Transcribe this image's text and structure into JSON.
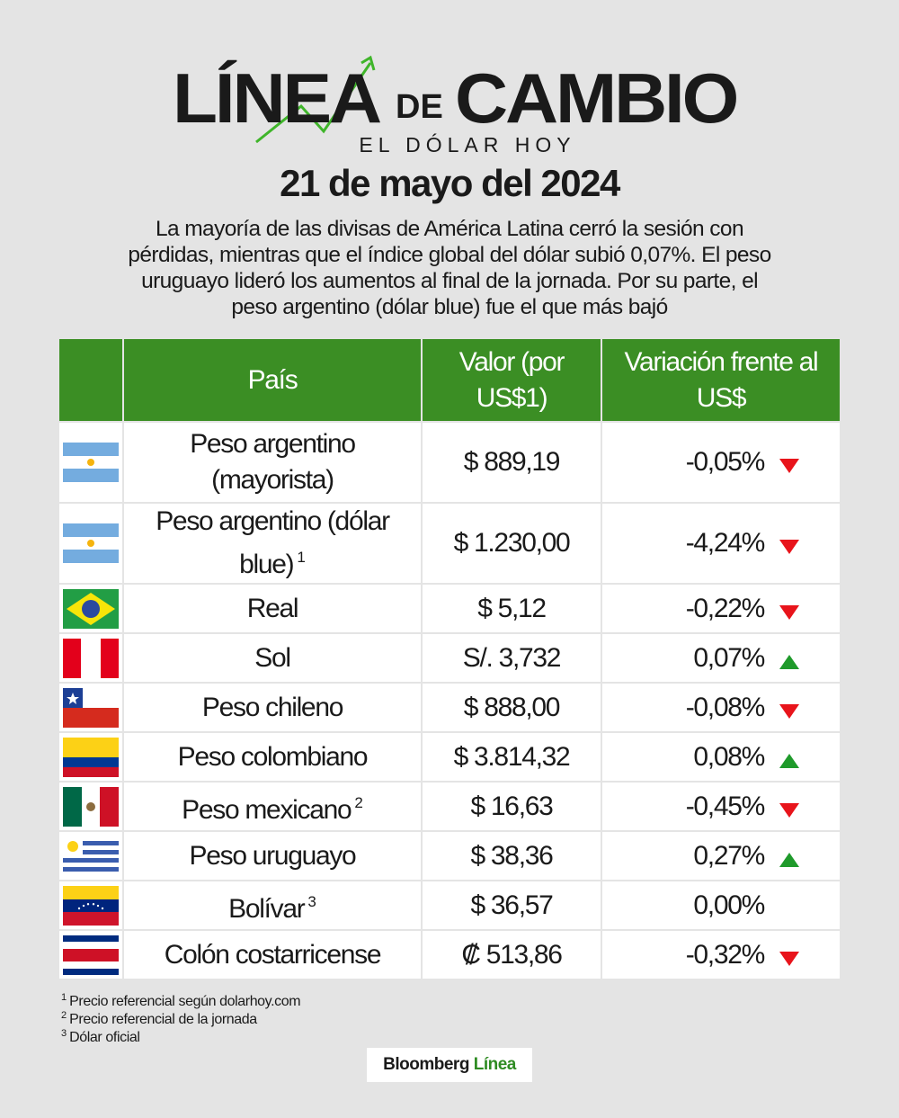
{
  "header": {
    "title_part1": "LÍNEA",
    "title_part2": "DE",
    "title_part3": "CAMBIO",
    "subtitle": "EL DÓLAR HOY",
    "date": "21 de mayo del 2024",
    "intro": "La mayoría de las divisas de América Latina cerró la sesión con pérdidas, mientras que el índice global del dólar subió 0,07%. El peso uruguayo lideró los aumentos al final de la jornada. Por su parte, el peso argentino (dólar blue) fue el que más bajó"
  },
  "table": {
    "columns": [
      "País",
      "Valor (por US$1)",
      "Variación frente al US$"
    ],
    "rows": [
      {
        "name": "Peso argentino (mayorista)",
        "value": "$ 889,19",
        "change": "-0,05%",
        "trend": "down"
      },
      {
        "name": "Peso argentino (dólar blue)",
        "note": "1",
        "value": "$ 1.230,00",
        "change": "-4,24%",
        "trend": "down"
      },
      {
        "name": "Real",
        "value": "$ 5,12",
        "change": "-0,22%",
        "trend": "down"
      },
      {
        "name": "Sol",
        "value": "S/. 3,732",
        "change": "0,07%",
        "trend": "up"
      },
      {
        "name": "Peso chileno",
        "value": "$ 888,00",
        "change": "-0,08%",
        "trend": "down"
      },
      {
        "name": "Peso colombiano",
        "value": "$ 3.814,32",
        "change": "0,08%",
        "trend": "up"
      },
      {
        "name": "Peso mexicano",
        "note": "2",
        "value": "$ 16,63",
        "change": "-0,45%",
        "trend": "down"
      },
      {
        "name": "Peso uruguayo",
        "value": "$ 38,36",
        "change": "0,27%",
        "trend": "up"
      },
      {
        "name": "Bolívar",
        "note": "3",
        "value": "$ 36,57",
        "change": "0,00%"
      },
      {
        "name": "Colón costarricense",
        "value": "₡ 513,86",
        "change": "-0,32%",
        "trend": "down"
      }
    ]
  },
  "footnotes": [
    {
      "mark": "1",
      "text": "Precio referencial según dolarhoy.com"
    },
    {
      "mark": "2",
      "text": "Precio referencial de la jornada"
    },
    {
      "mark": "3",
      "text": "Dólar oficial"
    }
  ],
  "logo": {
    "part1": "Bloomberg",
    "part2": "Línea"
  }
}
